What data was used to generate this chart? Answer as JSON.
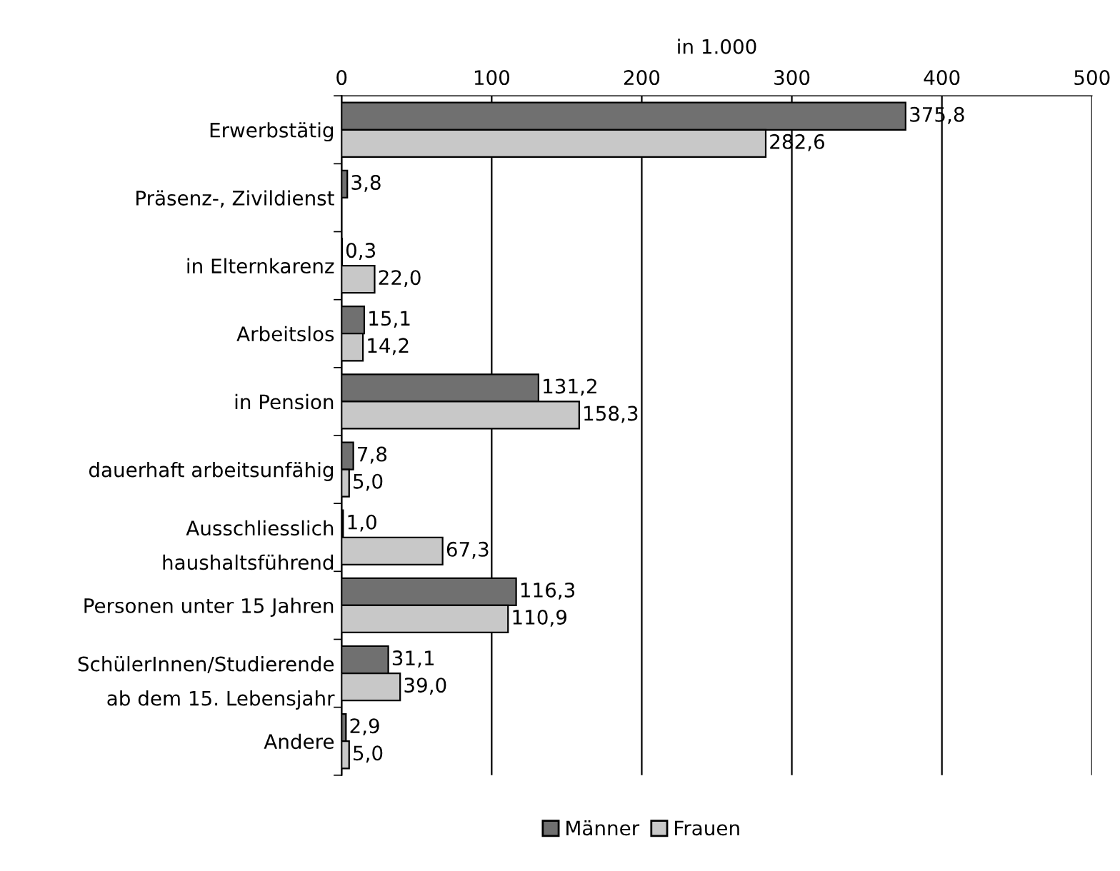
{
  "chart_data": {
    "type": "bar",
    "orientation": "horizontal",
    "xlabel": "in 1.000",
    "categories": [
      "Erwerbstätig",
      "Präsenz-, Zivildienst",
      "in Elternkarenz",
      "Arbeitslos",
      "in Pension",
      "dauerhaft arbeitsunfähig",
      "Ausschliesslich\nhaushaltsführend",
      "Personen unter 15 Jahren",
      "SchülerInnen/Studierende\nab dem 15. Lebensjahr",
      "Andere"
    ],
    "series": [
      {
        "name": "Männer",
        "color": "#707070",
        "values": [
          375.8,
          3.8,
          0.3,
          15.1,
          131.2,
          7.8,
          1.0,
          116.3,
          31.1,
          2.9
        ],
        "value_labels": [
          "375,8",
          "3,8",
          "0,3",
          "15,1",
          "131,2",
          "7,8",
          "1,0",
          "116,3",
          "31,1",
          "2,9"
        ]
      },
      {
        "name": "Frauen",
        "color": "#c8c8c8",
        "values": [
          282.6,
          null,
          22.0,
          14.2,
          158.3,
          5.0,
          67.3,
          110.9,
          39.0,
          5.0
        ],
        "value_labels": [
          "282,6",
          null,
          "22,0",
          "14,2",
          "158,3",
          "5,0",
          "67,3",
          "110,9",
          "39,0",
          "5,0"
        ]
      }
    ],
    "xlim": [
      0,
      500
    ],
    "xticks": [
      0,
      100,
      200,
      300,
      400,
      500
    ],
    "grid": "x",
    "legend": "bottom"
  }
}
